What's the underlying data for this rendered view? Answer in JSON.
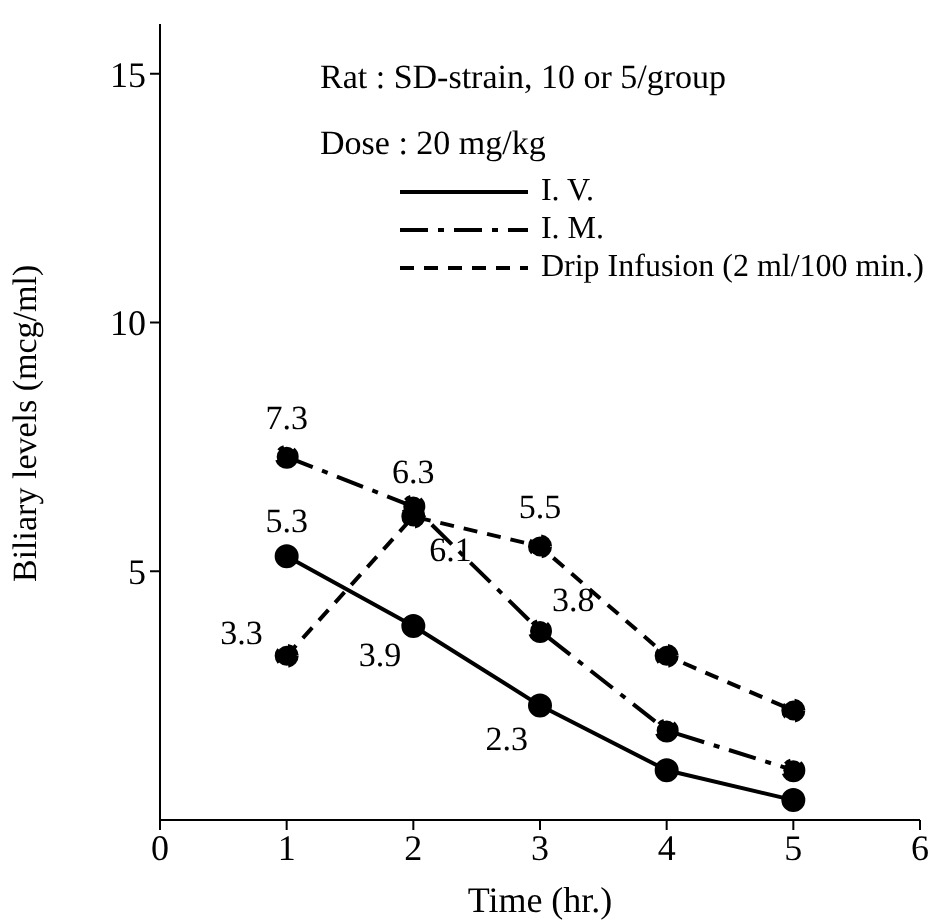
{
  "chart_data": {
    "type": "line",
    "xlabel": "Time (hr.)",
    "ylabel": "Biliary levels (mcg/ml)",
    "annotations": [
      "Rat : SD-strain, 10 or 5/group",
      "Dose : 20 mg/kg"
    ],
    "x": [
      1,
      2,
      3,
      4,
      5
    ],
    "series": [
      {
        "name": "I. V.",
        "color": "#000000",
        "line_style": "solid",
        "values": [
          5.3,
          3.9,
          2.3,
          1.0,
          0.4
        ],
        "value_labels": [
          "5.3",
          "3.9",
          "2.3",
          null,
          null
        ]
      },
      {
        "name": "I. M.",
        "color": "#000000",
        "line_style": "dashdot",
        "values": [
          7.3,
          6.3,
          3.8,
          1.8,
          1.0
        ],
        "value_labels": [
          "7.3",
          "6.3",
          "3.8",
          null,
          null
        ]
      },
      {
        "name": "Drip Infusion (2 ml/100 min.)",
        "color": "#000000",
        "line_style": "dashed",
        "values": [
          3.3,
          6.1,
          5.5,
          3.3,
          2.2
        ],
        "value_labels": [
          "3.3",
          "6.1",
          "5.5",
          null,
          null
        ]
      }
    ],
    "xlim": [
      0,
      6
    ],
    "xticks": [
      0,
      1,
      2,
      3,
      4,
      5,
      6
    ],
    "ylim": [
      0,
      16
    ],
    "yticks": [
      5,
      10,
      15
    ],
    "marker": "circle",
    "grid": false,
    "legend": "top right"
  }
}
